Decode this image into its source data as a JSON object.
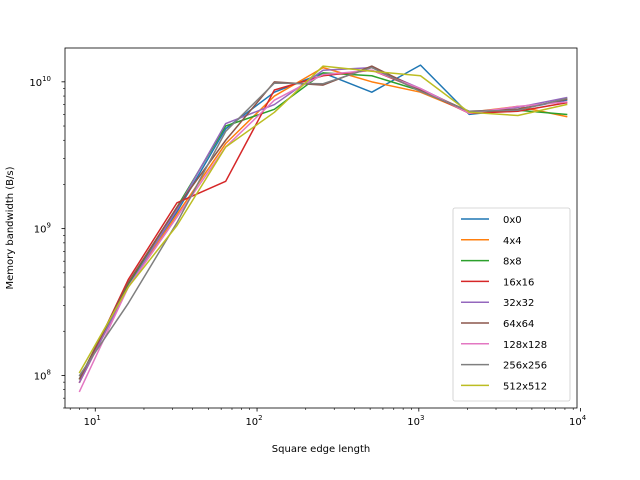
{
  "chart_data": {
    "type": "line",
    "title": "",
    "xlabel": "Square edge length",
    "ylabel": "Memory bandwidth (B/s)",
    "xscale": "log",
    "yscale": "log",
    "xlim": [
      6.5,
      9500
    ],
    "ylim": [
      60000000,
      17000000000
    ],
    "x": [
      8,
      16,
      32,
      64,
      128,
      256,
      512,
      1024,
      2048,
      4096,
      8192
    ],
    "grid": false,
    "legend": "lower-right",
    "x_ticks": [
      {
        "value": 10,
        "base": "10",
        "exp": "1"
      },
      {
        "value": 100,
        "base": "10",
        "exp": "2"
      },
      {
        "value": 1000,
        "base": "10",
        "exp": "3"
      },
      {
        "value": 10000,
        "base": "10",
        "exp": "4"
      }
    ],
    "y_ticks": [
      {
        "value": 100000000,
        "base": "10",
        "exp": "8"
      },
      {
        "value": 1000000000,
        "base": "10",
        "exp": "9"
      },
      {
        "value": 10000000000,
        "base": "10",
        "exp": "10"
      }
    ],
    "series": [
      {
        "name": "0x0",
        "color": "#1f77b4",
        "values": [
          95000000,
          420000000,
          1300000000,
          4800000000,
          8500000000,
          11500000000,
          8500000000,
          13000000000,
          6000000000,
          6500000000,
          7500000000
        ]
      },
      {
        "name": "4x4",
        "color": "#ff7f0e",
        "values": [
          90000000,
          400000000,
          1250000000,
          3800000000,
          8000000000,
          12500000000,
          10000000000,
          8500000000,
          6200000000,
          6800000000,
          5800000000
        ]
      },
      {
        "name": "8x8",
        "color": "#2ca02c",
        "values": [
          95000000,
          420000000,
          1400000000,
          5000000000,
          6500000000,
          11500000000,
          11000000000,
          8700000000,
          6200000000,
          6400000000,
          6000000000
        ]
      },
      {
        "name": "16x16",
        "color": "#d62728",
        "values": [
          90000000,
          450000000,
          1500000000,
          2100000000,
          8800000000,
          11000000000,
          12000000000,
          8800000000,
          6100000000,
          6300000000,
          7200000000
        ]
      },
      {
        "name": "32x32",
        "color": "#9467bd",
        "values": [
          90000000,
          400000000,
          1350000000,
          5200000000,
          7000000000,
          12000000000,
          12500000000,
          9000000000,
          6200000000,
          6700000000,
          7800000000
        ]
      },
      {
        "name": "64x64",
        "color": "#8c564b",
        "values": [
          95000000,
          430000000,
          1400000000,
          4000000000,
          10000000000,
          9500000000,
          12800000000,
          8800000000,
          6300000000,
          6500000000,
          7600000000
        ]
      },
      {
        "name": "128x128",
        "color": "#e377c2",
        "values": [
          78000000,
          400000000,
          1200000000,
          3600000000,
          7500000000,
          11200000000,
          12000000000,
          9000000000,
          6100000000,
          6800000000,
          7300000000
        ]
      },
      {
        "name": "256x256",
        "color": "#7f7f7f",
        "values": [
          100000000,
          310000000,
          1100000000,
          4600000000,
          9800000000,
          9700000000,
          12500000000,
          8600000000,
          6300000000,
          6400000000,
          7700000000
        ]
      },
      {
        "name": "512x512",
        "color": "#bcbd22",
        "values": [
          105000000,
          400000000,
          1050000000,
          3600000000,
          6200000000,
          12800000000,
          11800000000,
          11000000000,
          6200000000,
          5900000000,
          7000000000
        ]
      }
    ]
  }
}
